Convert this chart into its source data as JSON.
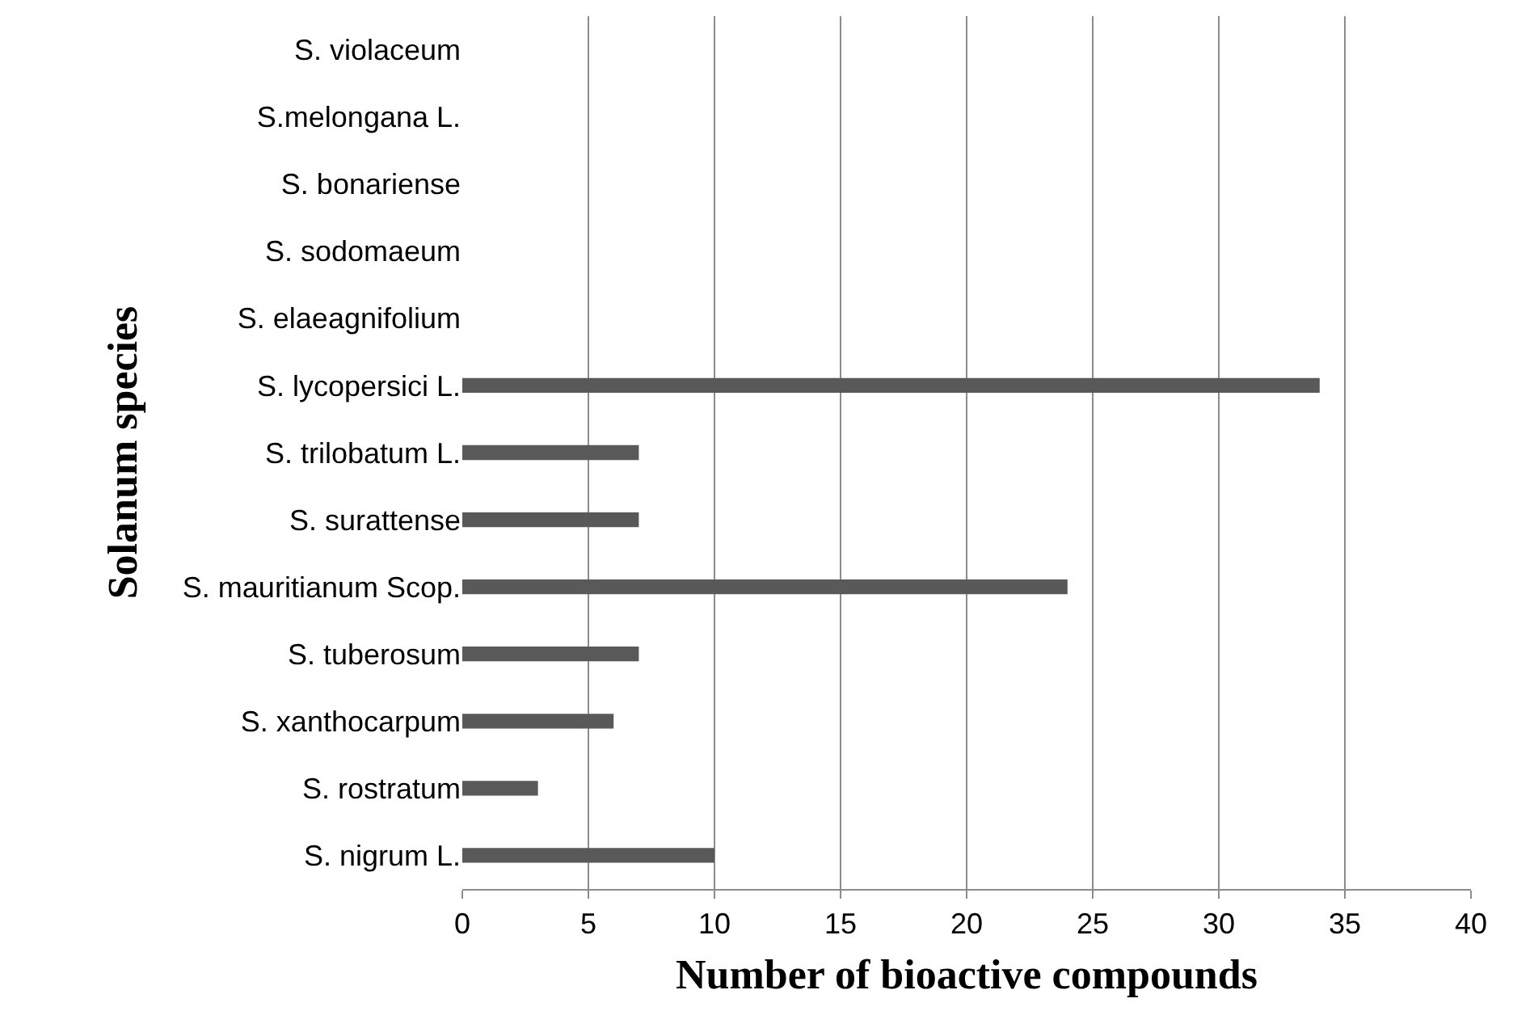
{
  "chart_data": {
    "type": "bar",
    "orientation": "horizontal",
    "xlabel": "Number of bioactive compounds",
    "ylabel": "Solanum species",
    "categories": [
      "S. violaceum",
      "S.melongana L.",
      "S. bonariense",
      "S. sodomaeum",
      "S. elaeagnifolium",
      "S. lycopersici L.",
      "S. trilobatum L.",
      "S. surattense",
      "S. mauritianum Scop.",
      "S. tuberosum",
      "S. xanthocarpum",
      "S. rostratum",
      "S. nigrum L."
    ],
    "values": [
      0,
      0,
      0,
      0,
      0,
      34,
      7,
      7,
      24,
      7,
      6,
      3,
      10
    ],
    "color": "#595959",
    "xlim": [
      0,
      40
    ],
    "xticks": [
      0,
      5,
      10,
      15,
      20,
      25,
      30,
      35,
      40
    ],
    "grid": "x"
  }
}
